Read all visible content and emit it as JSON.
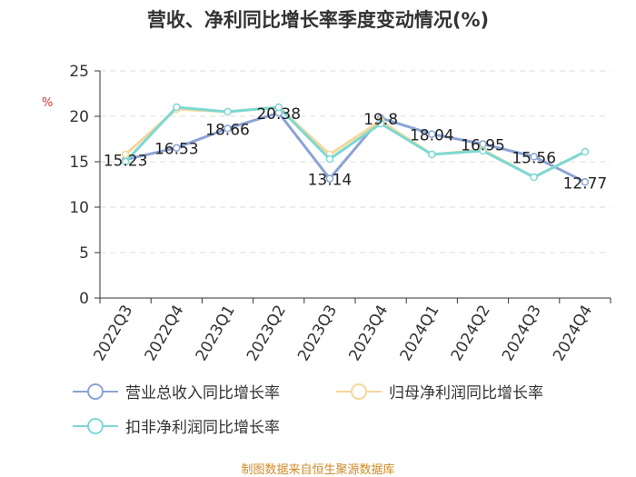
{
  "chart_data": {
    "type": "line",
    "title": "营收、净利同比增长率季度变动情况(%)",
    "ylabel": "%",
    "categories": [
      "2022Q3",
      "2022Q4",
      "2023Q1",
      "2023Q2",
      "2023Q3",
      "2023Q4",
      "2024Q1",
      "2024Q2",
      "2024Q3",
      "2024Q4"
    ],
    "ylim": [
      0,
      25
    ],
    "yticks": [
      0,
      5,
      10,
      15,
      20,
      25
    ],
    "series": [
      {
        "name": "营业总收入同比增长率",
        "color": "#8ba3d6",
        "values": [
          15.23,
          16.53,
          18.66,
          20.38,
          13.14,
          19.8,
          18.04,
          16.95,
          15.56,
          12.77
        ],
        "labels": [
          "15.23",
          "16.53",
          "18.66",
          "20.38",
          "13.14",
          "19.8",
          "18.04",
          "16.95",
          "15.56",
          "12.77"
        ]
      },
      {
        "name": "归母净利润同比增长率",
        "color": "#f5d79a",
        "values": [
          15.8,
          20.8,
          20.5,
          21.0,
          15.8,
          19.5,
          15.8,
          16.3,
          13.3,
          16.1
        ]
      },
      {
        "name": "扣非净利润同比增长率",
        "color": "#7dd8d3",
        "values": [
          15.0,
          21.0,
          20.5,
          21.0,
          15.3,
          19.2,
          15.8,
          16.2,
          13.3,
          16.1
        ]
      }
    ],
    "grid": true,
    "legend": "bottom"
  },
  "source": "制图数据来自恒生聚源数据库"
}
